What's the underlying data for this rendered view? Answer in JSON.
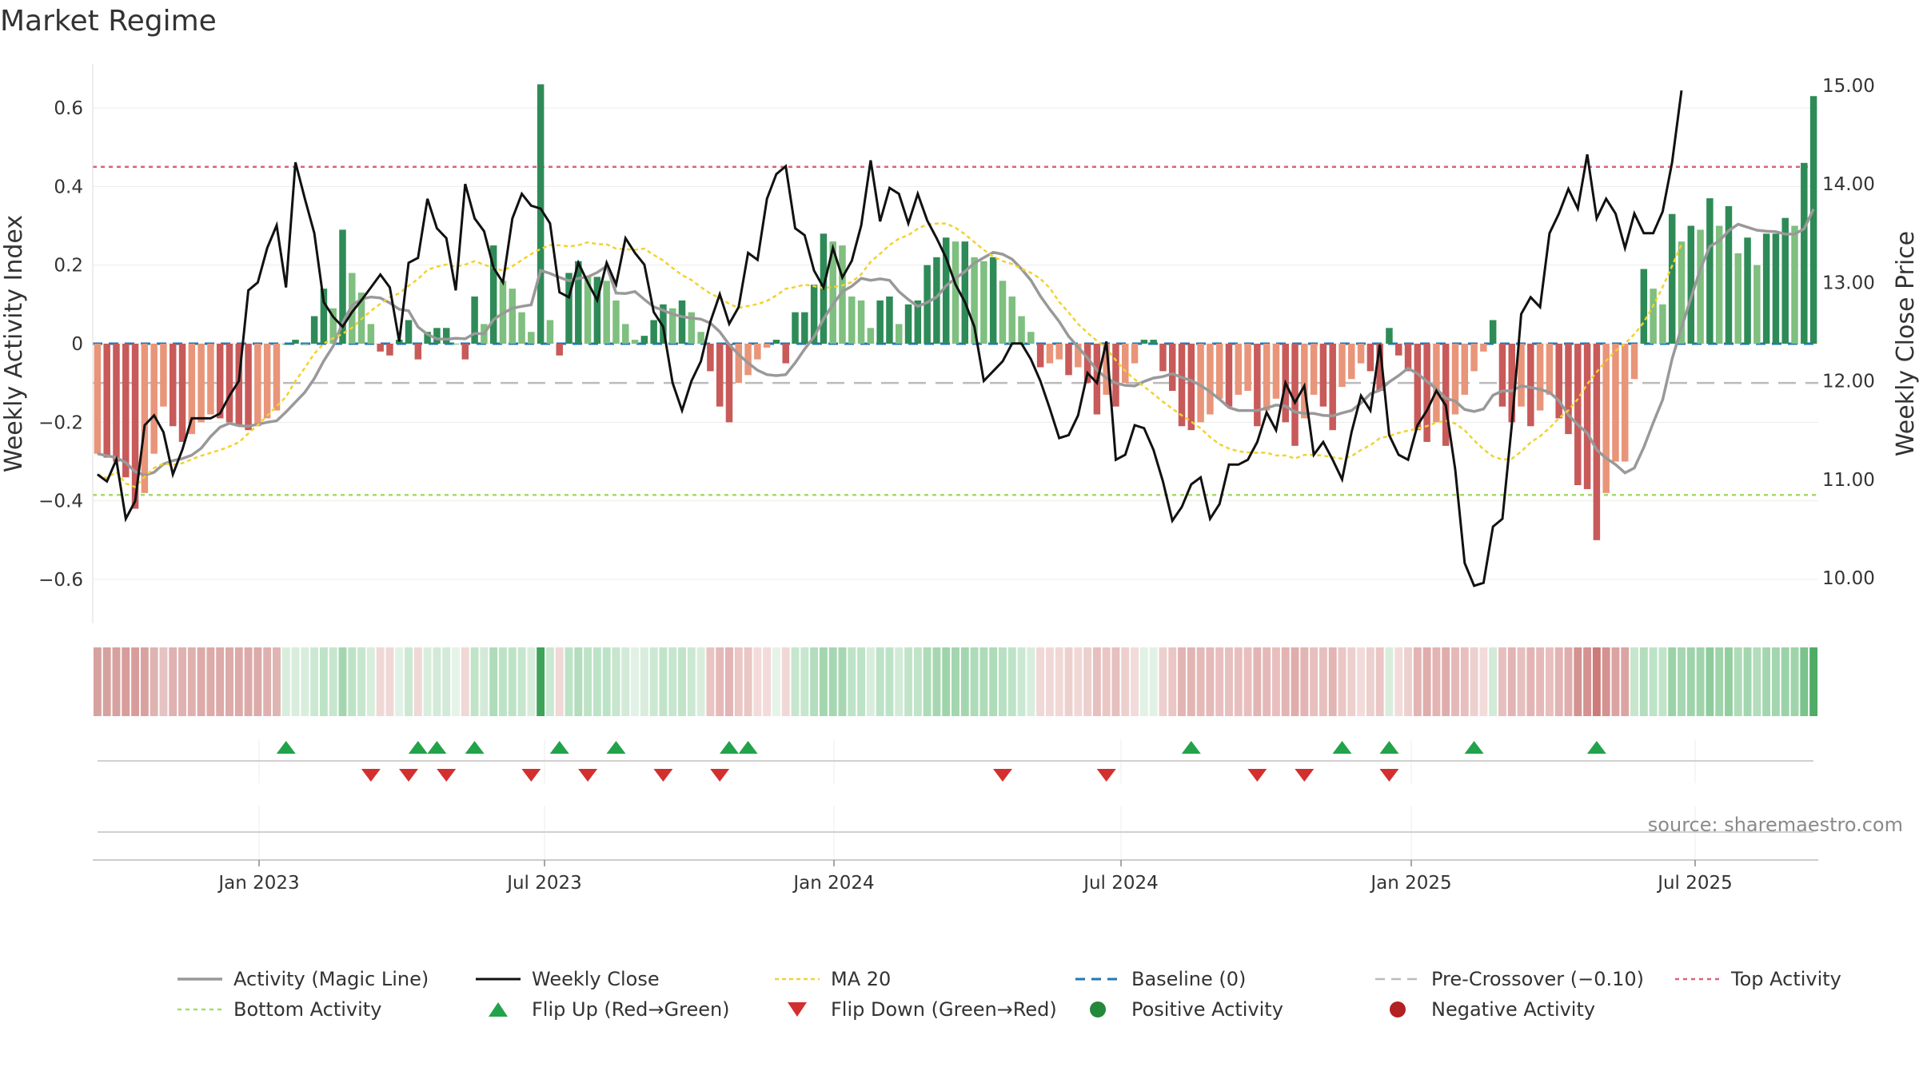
{
  "chart_data": {
    "type": "bar",
    "title": "Market Regime",
    "ylabel": "Weekly Activity Index",
    "y2label": "Weekly Close Price",
    "ylim": [
      -0.72,
      0.72
    ],
    "y2lim": [
      9.5,
      15.1
    ],
    "yticks": [
      "0.6",
      "0.4",
      "0.2",
      "0",
      "−0.2",
      "−0.4",
      "−0.6"
    ],
    "y2ticks": [
      "15.00",
      "14.00",
      "13.00",
      "12.00",
      "11.00",
      "10.00"
    ],
    "xticks": [
      "Jan 2023",
      "Jul 2023",
      "Jan 2024",
      "Jul 2024",
      "Jan 2025",
      "Jul 2025"
    ],
    "top_activity": 0.45,
    "bottom_activity": -0.385,
    "pre_crossover": -0.1,
    "baseline": 0,
    "activity_index": [
      -0.28,
      -0.29,
      -0.3,
      -0.34,
      -0.42,
      -0.38,
      -0.28,
      -0.16,
      -0.21,
      -0.25,
      -0.23,
      -0.2,
      -0.18,
      -0.19,
      -0.2,
      -0.21,
      -0.22,
      -0.21,
      -0.19,
      -0.17,
      0.0,
      0.01,
      0.0,
      0.07,
      0.14,
      0.09,
      0.29,
      0.18,
      0.13,
      0.05,
      -0.02,
      -0.03,
      0.01,
      0.06,
      -0.04,
      0.03,
      0.04,
      0.04,
      0.0,
      -0.04,
      0.12,
      0.05,
      0.25,
      0.16,
      0.14,
      0.08,
      0.03,
      0.66,
      0.06,
      -0.03,
      0.18,
      0.21,
      0.17,
      0.17,
      0.16,
      0.11,
      0.05,
      0.01,
      0.02,
      0.06,
      0.1,
      0.09,
      0.11,
      0.08,
      0.03,
      -0.07,
      -0.16,
      -0.2,
      -0.1,
      -0.08,
      -0.04,
      -0.01,
      0.01,
      -0.05,
      0.08,
      0.08,
      0.15,
      0.28,
      0.26,
      0.25,
      0.12,
      0.11,
      0.04,
      0.11,
      0.12,
      0.05,
      0.1,
      0.11,
      0.2,
      0.22,
      0.27,
      0.26,
      0.26,
      0.22,
      0.21,
      0.22,
      0.16,
      0.12,
      0.07,
      0.03,
      -0.06,
      -0.05,
      -0.04,
      -0.08,
      -0.06,
      -0.1,
      -0.18,
      -0.13,
      -0.16,
      -0.1,
      -0.05,
      0.01,
      0.01,
      -0.07,
      -0.12,
      -0.21,
      -0.22,
      -0.2,
      -0.18,
      -0.14,
      -0.16,
      -0.13,
      -0.12,
      -0.21,
      -0.17,
      -0.14,
      -0.2,
      -0.26,
      -0.19,
      -0.13,
      -0.16,
      -0.22,
      -0.11,
      -0.09,
      -0.05,
      -0.07,
      -0.12,
      0.04,
      -0.03,
      -0.07,
      -0.22,
      -0.25,
      -0.2,
      -0.26,
      -0.18,
      -0.13,
      -0.07,
      -0.02,
      0.06,
      -0.16,
      -0.2,
      -0.16,
      -0.21,
      -0.17,
      -0.13,
      -0.19,
      -0.23,
      -0.36,
      -0.37,
      -0.5,
      -0.38,
      -0.3,
      -0.3,
      -0.09,
      0.19,
      0.14,
      0.1,
      0.33,
      0.26,
      0.3,
      0.29,
      0.37,
      0.3,
      0.35,
      0.23,
      0.27,
      0.2,
      0.28,
      0.28,
      0.32,
      0.3,
      0.46,
      0.63
    ],
    "weekly_close": [
      11.05,
      10.98,
      11.2,
      10.6,
      10.78,
      11.55,
      11.65,
      11.48,
      11.05,
      11.3,
      11.62,
      11.62,
      11.62,
      11.67,
      11.85,
      12.0,
      12.92,
      13.0,
      13.35,
      13.58,
      12.95,
      14.22,
      13.85,
      13.5,
      12.8,
      12.65,
      12.55,
      12.7,
      12.82,
      12.95,
      13.08,
      12.95,
      12.4,
      13.2,
      13.25,
      13.85,
      13.55,
      13.45,
      12.92,
      14.0,
      13.65,
      13.52,
      13.15,
      13.0,
      13.65,
      13.9,
      13.78,
      13.75,
      13.6,
      12.9,
      12.85,
      13.2,
      13.0,
      12.82,
      13.2,
      12.98,
      13.45,
      13.3,
      13.18,
      12.7,
      12.55,
      11.98,
      11.7,
      12.0,
      12.2,
      12.6,
      12.88,
      12.58,
      12.75,
      13.3,
      13.23,
      13.85,
      14.1,
      14.18,
      13.55,
      13.48,
      13.12,
      12.95,
      13.35,
      13.05,
      13.22,
      13.58,
      14.24,
      13.62,
      13.96,
      13.9,
      13.6,
      13.9,
      13.63,
      13.45,
      13.25,
      12.98,
      12.8,
      12.55,
      12.0,
      12.1,
      12.2,
      12.38,
      12.38,
      12.22,
      12.0,
      11.72,
      11.42,
      11.45,
      11.65,
      12.08,
      11.98,
      12.4,
      11.2,
      11.25,
      11.55,
      11.52,
      11.3,
      10.98,
      10.58,
      10.72,
      10.95,
      11.02,
      10.6,
      10.75,
      11.15,
      11.15,
      11.2,
      11.38,
      11.68,
      11.5,
      11.98,
      11.78,
      11.95,
      11.25,
      11.38,
      11.2,
      11.0,
      11.48,
      11.85,
      11.7,
      12.37,
      11.45,
      11.25,
      11.2,
      11.55,
      11.7,
      11.9,
      11.75,
      11.1,
      10.15,
      9.92,
      9.95,
      10.52,
      10.6,
      11.55,
      12.68,
      12.85,
      12.75,
      13.5,
      13.7,
      13.95,
      13.75,
      14.3,
      13.65,
      13.85,
      13.7,
      13.35,
      13.7,
      13.5,
      13.5,
      13.72,
      14.22,
      14.95
    ]
  },
  "regime_strip": [
    "#d6a2a0",
    "#d6a2a0",
    "#d6a2a0",
    "#d89d9b",
    "#d89d9b",
    "#d8a2a1",
    "#dfb3b1",
    "#e4c3c2",
    "#dfb1b0",
    "#dfb1b0",
    "#deb0ae",
    "#dcaaa8",
    "#dcaaa8",
    "#dcaaa8",
    "#dcaaa8",
    "#dcaaa8",
    "#dcaaa8",
    "#dcaaa8",
    "#deb1b0",
    "#dfb5b3",
    "#d9eddd",
    "#d9eddd",
    "#d9eddd",
    "#cbe8d3",
    "#bde3c6",
    "#c6e6ce",
    "#a3d6af",
    "#bde3c6",
    "#c6e6ce",
    "#d9eddd",
    "#f0d8d7",
    "#f0d8d7",
    "#e2f1e5",
    "#cbe8d3",
    "#f0d8d7",
    "#d9eddd",
    "#d2ead7",
    "#d2ead7",
    "#e6f3e9",
    "#f0d8d7",
    "#c1e4c9",
    "#d2ead7",
    "#aedbb8",
    "#bde3c6",
    "#bde3c6",
    "#c6e6ce",
    "#d9eddd",
    "#40a35a",
    "#cbe8d3",
    "#f0d8d7",
    "#bde3c6",
    "#b3ddbd",
    "#bde3c6",
    "#bde3c6",
    "#bde3c6",
    "#c6e6ce",
    "#d2ead7",
    "#e2f1e5",
    "#d9eddd",
    "#cbe8d3",
    "#c1e4c9",
    "#c6e6ce",
    "#c1e4c9",
    "#cbe8d3",
    "#d9eddd",
    "#e9c4c3",
    "#e5b9b8",
    "#e2b4b3",
    "#eac6c5",
    "#eac6c5",
    "#f2dbda",
    "#f2dbda",
    "#e6f3e9",
    "#f0d8d7",
    "#c6e6ce",
    "#c6e6ce",
    "#b3ddbd",
    "#a3d6af",
    "#a6d7b2",
    "#a6d7b2",
    "#bde3c6",
    "#bde3c6",
    "#d9eddd",
    "#bde3c6",
    "#bde3c6",
    "#d2ead7",
    "#c1e4c9",
    "#c1e4c9",
    "#aedbb8",
    "#a6d7b2",
    "#9fd4ab",
    "#a3d6af",
    "#a3d6af",
    "#aedbb8",
    "#aedbb8",
    "#aedbb8",
    "#b8e0c2",
    "#bde3c6",
    "#cbe8d3",
    "#d9eddd",
    "#f0d8d7",
    "#f0d8d7",
    "#f0d8d7",
    "#ecd0ce",
    "#f0d8d7",
    "#ecd0ce",
    "#e6c0be",
    "#eac6c5",
    "#e6c0be",
    "#ecd0ce",
    "#f2dbda",
    "#e2f1e5",
    "#e2f1e5",
    "#ecd0ce",
    "#eac6c5",
    "#e2b4b3",
    "#e2b4b3",
    "#e5b9b8",
    "#e5b9b8",
    "#e8bfbe",
    "#e6c0be",
    "#e8bfbe",
    "#e8bfbe",
    "#e2b4b3",
    "#e5b9b8",
    "#e8bfbe",
    "#e2b4b3",
    "#dfadac",
    "#e2b4b3",
    "#e8bfbe",
    "#e6c0be",
    "#e2b4b3",
    "#eac6c5",
    "#ecd0ce",
    "#f2dbda",
    "#ecd0ce",
    "#eac6c5",
    "#d9eddd",
    "#f2dbda",
    "#ecd0ce",
    "#e2b4b3",
    "#dfadac",
    "#e2b4b3",
    "#dfadac",
    "#e5b9b8",
    "#e8bfbe",
    "#ecd0ce",
    "#f2dbda",
    "#d2ead7",
    "#e6c0be",
    "#e2b4b3",
    "#e6c0be",
    "#e2b4b3",
    "#e5b9b8",
    "#e8bfbe",
    "#e2b4b3",
    "#dfadac",
    "#d49290",
    "#d49290",
    "#cc7b79",
    "#d49290",
    "#dba4a2",
    "#dba4a2",
    "#c6e6ce",
    "#b3ddbd",
    "#bde3c6",
    "#c1e4c9",
    "#9bd2a8",
    "#a6d7b2",
    "#9fd4ab",
    "#9fd4ab",
    "#8fcc9d",
    "#9fd4ab",
    "#93ce9f",
    "#aedbb8",
    "#a3d6af",
    "#b3ddbd",
    "#a3d6af",
    "#a3d6af",
    "#9bd2a8",
    "#9fd4ab",
    "#7ac38a",
    "#4fab66"
  ],
  "flip_up_weeks": [
    20,
    34,
    36,
    40,
    49,
    55,
    67,
    69,
    116,
    132,
    137,
    146,
    159
  ],
  "flip_down_weeks": [
    29,
    33,
    37,
    46,
    52,
    60,
    66,
    96,
    107,
    123,
    128,
    137
  ],
  "source_text": "source: sharemaestro.com",
  "legend": [
    "Activity (Magic Line)",
    "Weekly Close",
    "MA 20",
    "Baseline (0)",
    "Pre-Crossover (−0.10)",
    "Top Activity",
    "Bottom Activity",
    "Flip Up (Red→Green)",
    "Flip Down (Green→Red)",
    "Positive Activity",
    "Negative Activity"
  ],
  "colors": {
    "pos_dark": "#2e8b57",
    "pos_light": "#7fbf7f",
    "neg_dark": "#c85a5a",
    "neg_light": "#e8957a",
    "close": "#111111",
    "magic": "#999999",
    "ma20": "#f2d22e",
    "baseline": "#1f77b4",
    "pre": "#bbbbbb",
    "top": "#e0607a",
    "bottom": "#a6d96a",
    "flip_up": "#22a34a",
    "flip_down": "#d32f2f",
    "pos_activity": "#22883a",
    "neg_activity": "#b22222"
  }
}
